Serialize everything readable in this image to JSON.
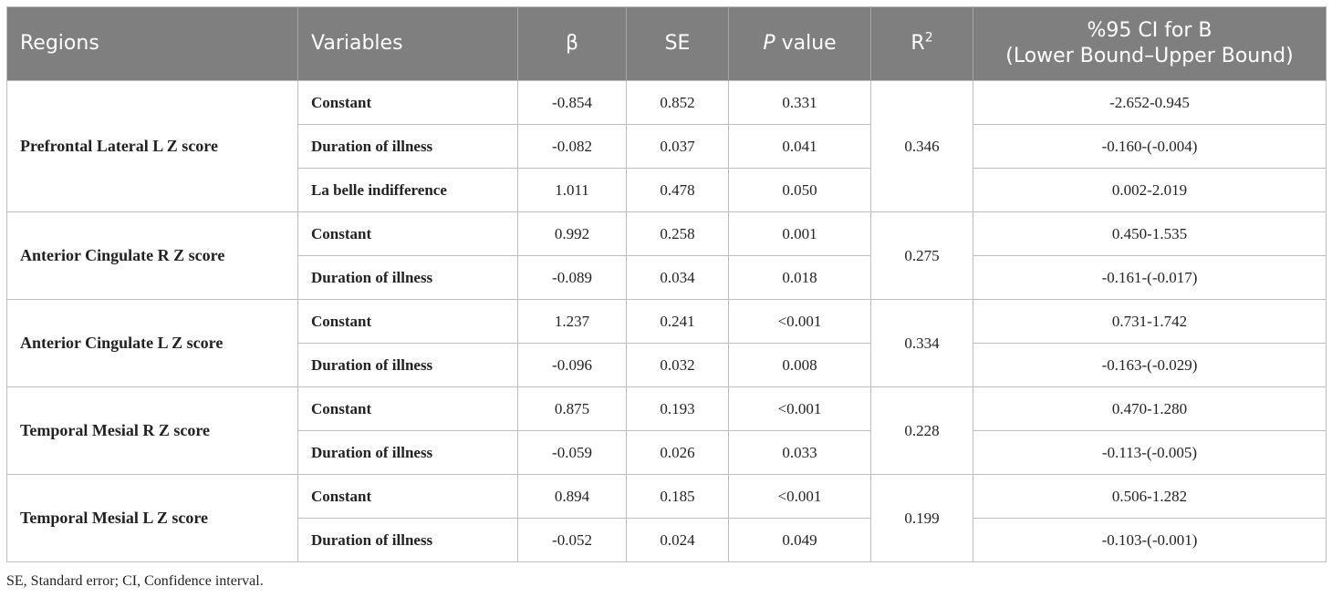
{
  "table": {
    "headers": {
      "regions": "Regions",
      "variables": "Variables",
      "beta": "β",
      "se": "SE",
      "p_italic": "P",
      "p_rest": " value",
      "r2_base": "R",
      "r2_sup": "2",
      "ci_line1": "%95 CI for B",
      "ci_line2": "(Lower Bound–Upper Bound)"
    },
    "groups": [
      {
        "region": "Prefrontal Lateral L Z score",
        "r2": "0.346",
        "rows": [
          {
            "variable": "Constant",
            "beta": "-0.854",
            "se": "0.852",
            "p": "0.331",
            "ci": "-2.652-0.945"
          },
          {
            "variable": "Duration of illness",
            "beta": "-0.082",
            "se": "0.037",
            "p": "0.041",
            "ci": "-0.160-(-0.004)"
          },
          {
            "variable": "La belle indifference",
            "beta": "1.011",
            "se": "0.478",
            "p": "0.050",
            "ci": "0.002-2.019"
          }
        ]
      },
      {
        "region": "Anterior Cingulate R Z score",
        "r2": "0.275",
        "rows": [
          {
            "variable": "Constant",
            "beta": "0.992",
            "se": "0.258",
            "p": "0.001",
            "ci": "0.450-1.535"
          },
          {
            "variable": "Duration of illness",
            "beta": "-0.089",
            "se": "0.034",
            "p": "0.018",
            "ci": "-0.161-(-0.017)"
          }
        ]
      },
      {
        "region": "Anterior Cingulate L Z score",
        "r2": "0.334",
        "rows": [
          {
            "variable": "Constant",
            "beta": "1.237",
            "se": "0.241",
            "p": "<0.001",
            "ci": "0.731-1.742"
          },
          {
            "variable": "Duration of illness",
            "beta": "-0.096",
            "se": "0.032",
            "p": "0.008",
            "ci": "-0.163-(-0.029)"
          }
        ]
      },
      {
        "region": "Temporal Mesial R Z score",
        "r2": "0.228",
        "rows": [
          {
            "variable": "Constant",
            "beta": "0.875",
            "se": "0.193",
            "p": "<0.001",
            "ci": "0.470-1.280"
          },
          {
            "variable": "Duration of illness",
            "beta": "-0.059",
            "se": "0.026",
            "p": "0.033",
            "ci": "-0.113-(-0.005)"
          }
        ]
      },
      {
        "region": "Temporal Mesial L Z score",
        "r2": "0.199",
        "rows": [
          {
            "variable": "Constant",
            "beta": "0.894",
            "se": "0.185",
            "p": "<0.001",
            "ci": "0.506-1.282"
          },
          {
            "variable": "Duration of illness",
            "beta": "-0.052",
            "se": "0.024",
            "p": "0.049",
            "ci": "-0.103-(-0.001)"
          }
        ]
      }
    ]
  },
  "footnote": "SE, Standard error; CI, Confidence interval."
}
